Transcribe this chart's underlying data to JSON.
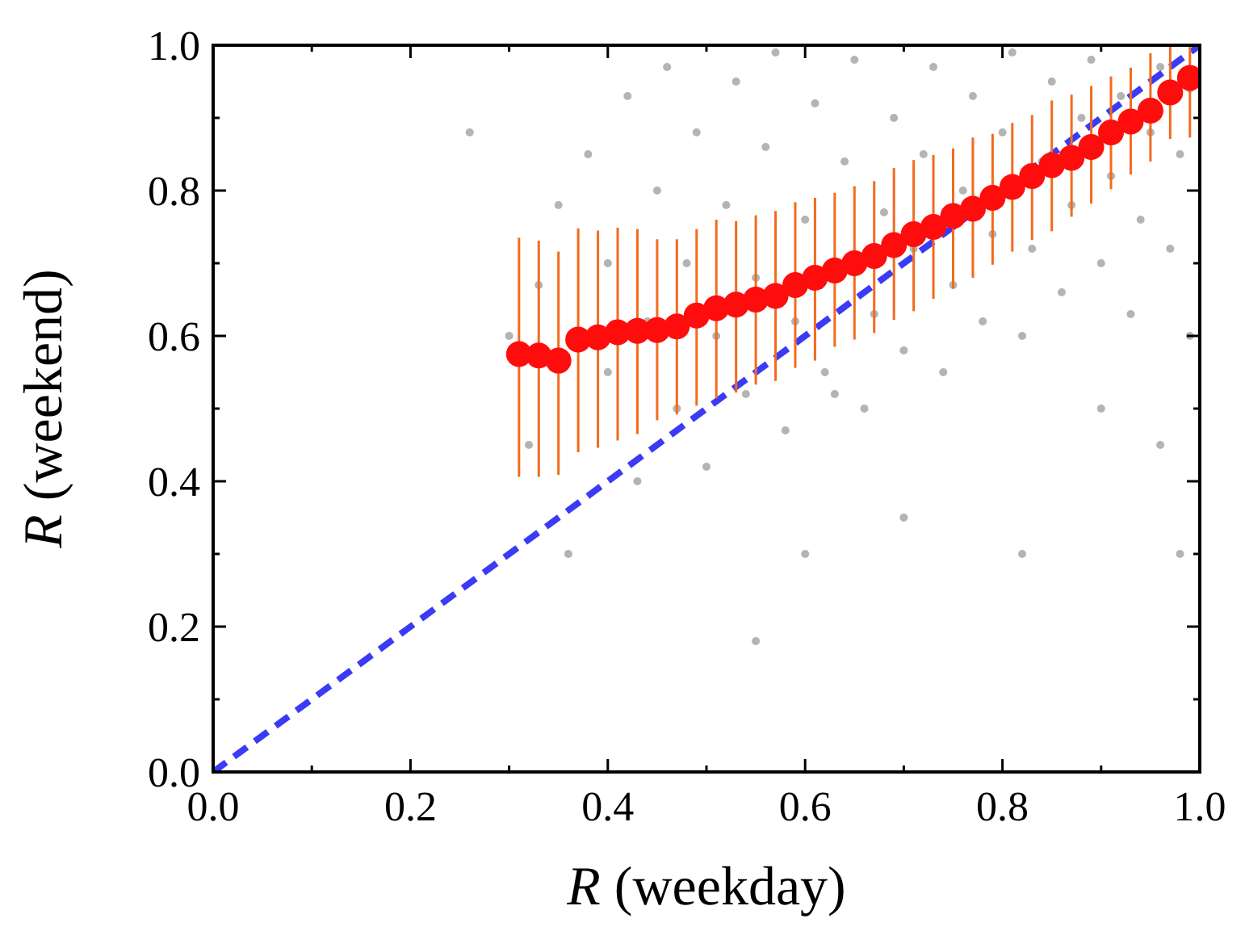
{
  "chart_data": {
    "type": "scatter",
    "xlabel": "R (weekday)",
    "ylabel": "R (weekend)",
    "xlim": [
      0,
      1
    ],
    "ylim": [
      0,
      1
    ],
    "xticks": [
      {
        "value": 0,
        "label": "0.0"
      },
      {
        "value": 0.1,
        "label": null
      },
      {
        "value": 0.2,
        "label": "0.2"
      },
      {
        "value": 0.3,
        "label": null
      },
      {
        "value": 0.4,
        "label": "0.4"
      },
      {
        "value": 0.5,
        "label": null
      },
      {
        "value": 0.6,
        "label": "0.6"
      },
      {
        "value": 0.7,
        "label": null
      },
      {
        "value": 0.8,
        "label": "0.8"
      },
      {
        "value": 0.9,
        "label": null
      },
      {
        "value": 1,
        "label": "1.0"
      }
    ],
    "yticks": [
      {
        "value": 0,
        "label": "0.0"
      },
      {
        "value": 0.1,
        "label": null
      },
      {
        "value": 0.2,
        "label": "0.2"
      },
      {
        "value": 0.3,
        "label": null
      },
      {
        "value": 0.4,
        "label": "0.4"
      },
      {
        "value": 0.5,
        "label": null
      },
      {
        "value": 0.6,
        "label": "0.6"
      },
      {
        "value": 0.7,
        "label": null
      },
      {
        "value": 0.8,
        "label": "0.8"
      },
      {
        "value": 0.9,
        "label": null
      },
      {
        "value": 1,
        "label": "1.0"
      }
    ],
    "marker": "circle",
    "series": [
      {
        "color": "#b4b4b4",
        "x": [
          0.26,
          0.3,
          0.32,
          0.33,
          0.35,
          0.36,
          0.38,
          0.4,
          0.4,
          0.42,
          0.43,
          0.44,
          0.45,
          0.46,
          0.47,
          0.48,
          0.49,
          0.5,
          0.51,
          0.52,
          0.53,
          0.54,
          0.55,
          0.56,
          0.57,
          0.58,
          0.59,
          0.6,
          0.61,
          0.62,
          0.63,
          0.64,
          0.65,
          0.66,
          0.67,
          0.68,
          0.69,
          0.7,
          0.71,
          0.72,
          0.73,
          0.74,
          0.75,
          0.76,
          0.77,
          0.78,
          0.79,
          0.8,
          0.81,
          0.82,
          0.83,
          0.84,
          0.85,
          0.86,
          0.87,
          0.88,
          0.89,
          0.9,
          0.91,
          0.92,
          0.93,
          0.94,
          0.95,
          0.96,
          0.97,
          0.98,
          0.99,
          0.99,
          0.96,
          0.9,
          0.82,
          0.7,
          0.6,
          0.55,
          0.98
        ],
        "values": [
          0.88,
          0.6,
          0.45,
          0.67,
          0.78,
          0.3,
          0.85,
          0.55,
          0.7,
          0.93,
          0.4,
          0.62,
          0.8,
          0.97,
          0.5,
          0.7,
          0.88,
          0.42,
          0.6,
          0.78,
          0.95,
          0.52,
          0.68,
          0.86,
          0.99,
          0.47,
          0.62,
          0.76,
          0.92,
          0.55,
          0.52,
          0.84,
          0.98,
          0.5,
          0.63,
          0.77,
          0.9,
          0.58,
          0.72,
          0.85,
          0.97,
          0.55,
          0.67,
          0.8,
          0.93,
          0.62,
          0.74,
          0.88,
          0.99,
          0.6,
          0.72,
          0.84,
          0.95,
          0.66,
          0.78,
          0.9,
          0.98,
          0.7,
          0.82,
          0.93,
          0.63,
          0.76,
          0.88,
          0.97,
          0.72,
          0.85,
          0.94,
          0.6,
          0.45,
          0.5,
          0.3,
          0.35,
          0.3,
          0.18,
          0.3
        ]
      },
      {
        "type": "line",
        "color": "#3b3bf5",
        "line_style": "dashed",
        "marker": "none",
        "x": [
          0,
          1
        ],
        "values": [
          0,
          1
        ]
      },
      {
        "color": "#ff0d0d",
        "x": [
          0.31,
          0.33,
          0.35,
          0.37,
          0.39,
          0.41,
          0.43,
          0.45,
          0.47,
          0.49,
          0.51,
          0.53,
          0.55,
          0.57,
          0.59,
          0.61,
          0.63,
          0.65,
          0.67,
          0.69,
          0.71,
          0.73,
          0.75,
          0.77,
          0.79,
          0.81,
          0.83,
          0.85,
          0.87,
          0.89,
          0.91,
          0.93,
          0.95,
          0.97,
          0.99
        ],
        "values": [
          0.575,
          0.573,
          0.566,
          0.595,
          0.598,
          0.605,
          0.607,
          0.608,
          0.613,
          0.628,
          0.638,
          0.643,
          0.65,
          0.655,
          0.67,
          0.68,
          0.69,
          0.7,
          0.71,
          0.725,
          0.74,
          0.75,
          0.765,
          0.775,
          0.79,
          0.805,
          0.82,
          0.835,
          0.845,
          0.86,
          0.88,
          0.895,
          0.91,
          0.935,
          0.955
        ],
        "errors": [
          [
            0.406,
            0.735
          ],
          [
            0.406,
            0.731
          ],
          [
            0.409,
            0.716
          ],
          [
            0.44,
            0.748
          ],
          [
            0.446,
            0.745
          ],
          [
            0.456,
            0.749
          ],
          [
            0.465,
            0.747
          ],
          [
            0.484,
            0.733
          ],
          [
            0.492,
            0.733
          ],
          [
            0.504,
            0.747
          ],
          [
            0.514,
            0.76
          ],
          [
            0.522,
            0.758
          ],
          [
            0.533,
            0.766
          ],
          [
            0.538,
            0.772
          ],
          [
            0.556,
            0.784
          ],
          [
            0.566,
            0.79
          ],
          [
            0.585,
            0.797
          ],
          [
            0.595,
            0.806
          ],
          [
            0.604,
            0.813
          ],
          [
            0.622,
            0.831
          ],
          [
            0.634,
            0.842
          ],
          [
            0.651,
            0.849
          ],
          [
            0.665,
            0.858
          ],
          [
            0.68,
            0.873
          ],
          [
            0.698,
            0.878
          ],
          [
            0.716,
            0.893
          ],
          [
            0.732,
            0.904
          ],
          [
            0.744,
            0.924
          ],
          [
            0.764,
            0.932
          ],
          [
            0.782,
            0.944
          ],
          [
            0.802,
            0.957
          ],
          [
            0.822,
            0.969
          ],
          [
            0.84,
            0.989
          ],
          [
            0.871,
            1.0
          ],
          [
            0.873,
            1.0
          ]
        ]
      }
    ]
  }
}
